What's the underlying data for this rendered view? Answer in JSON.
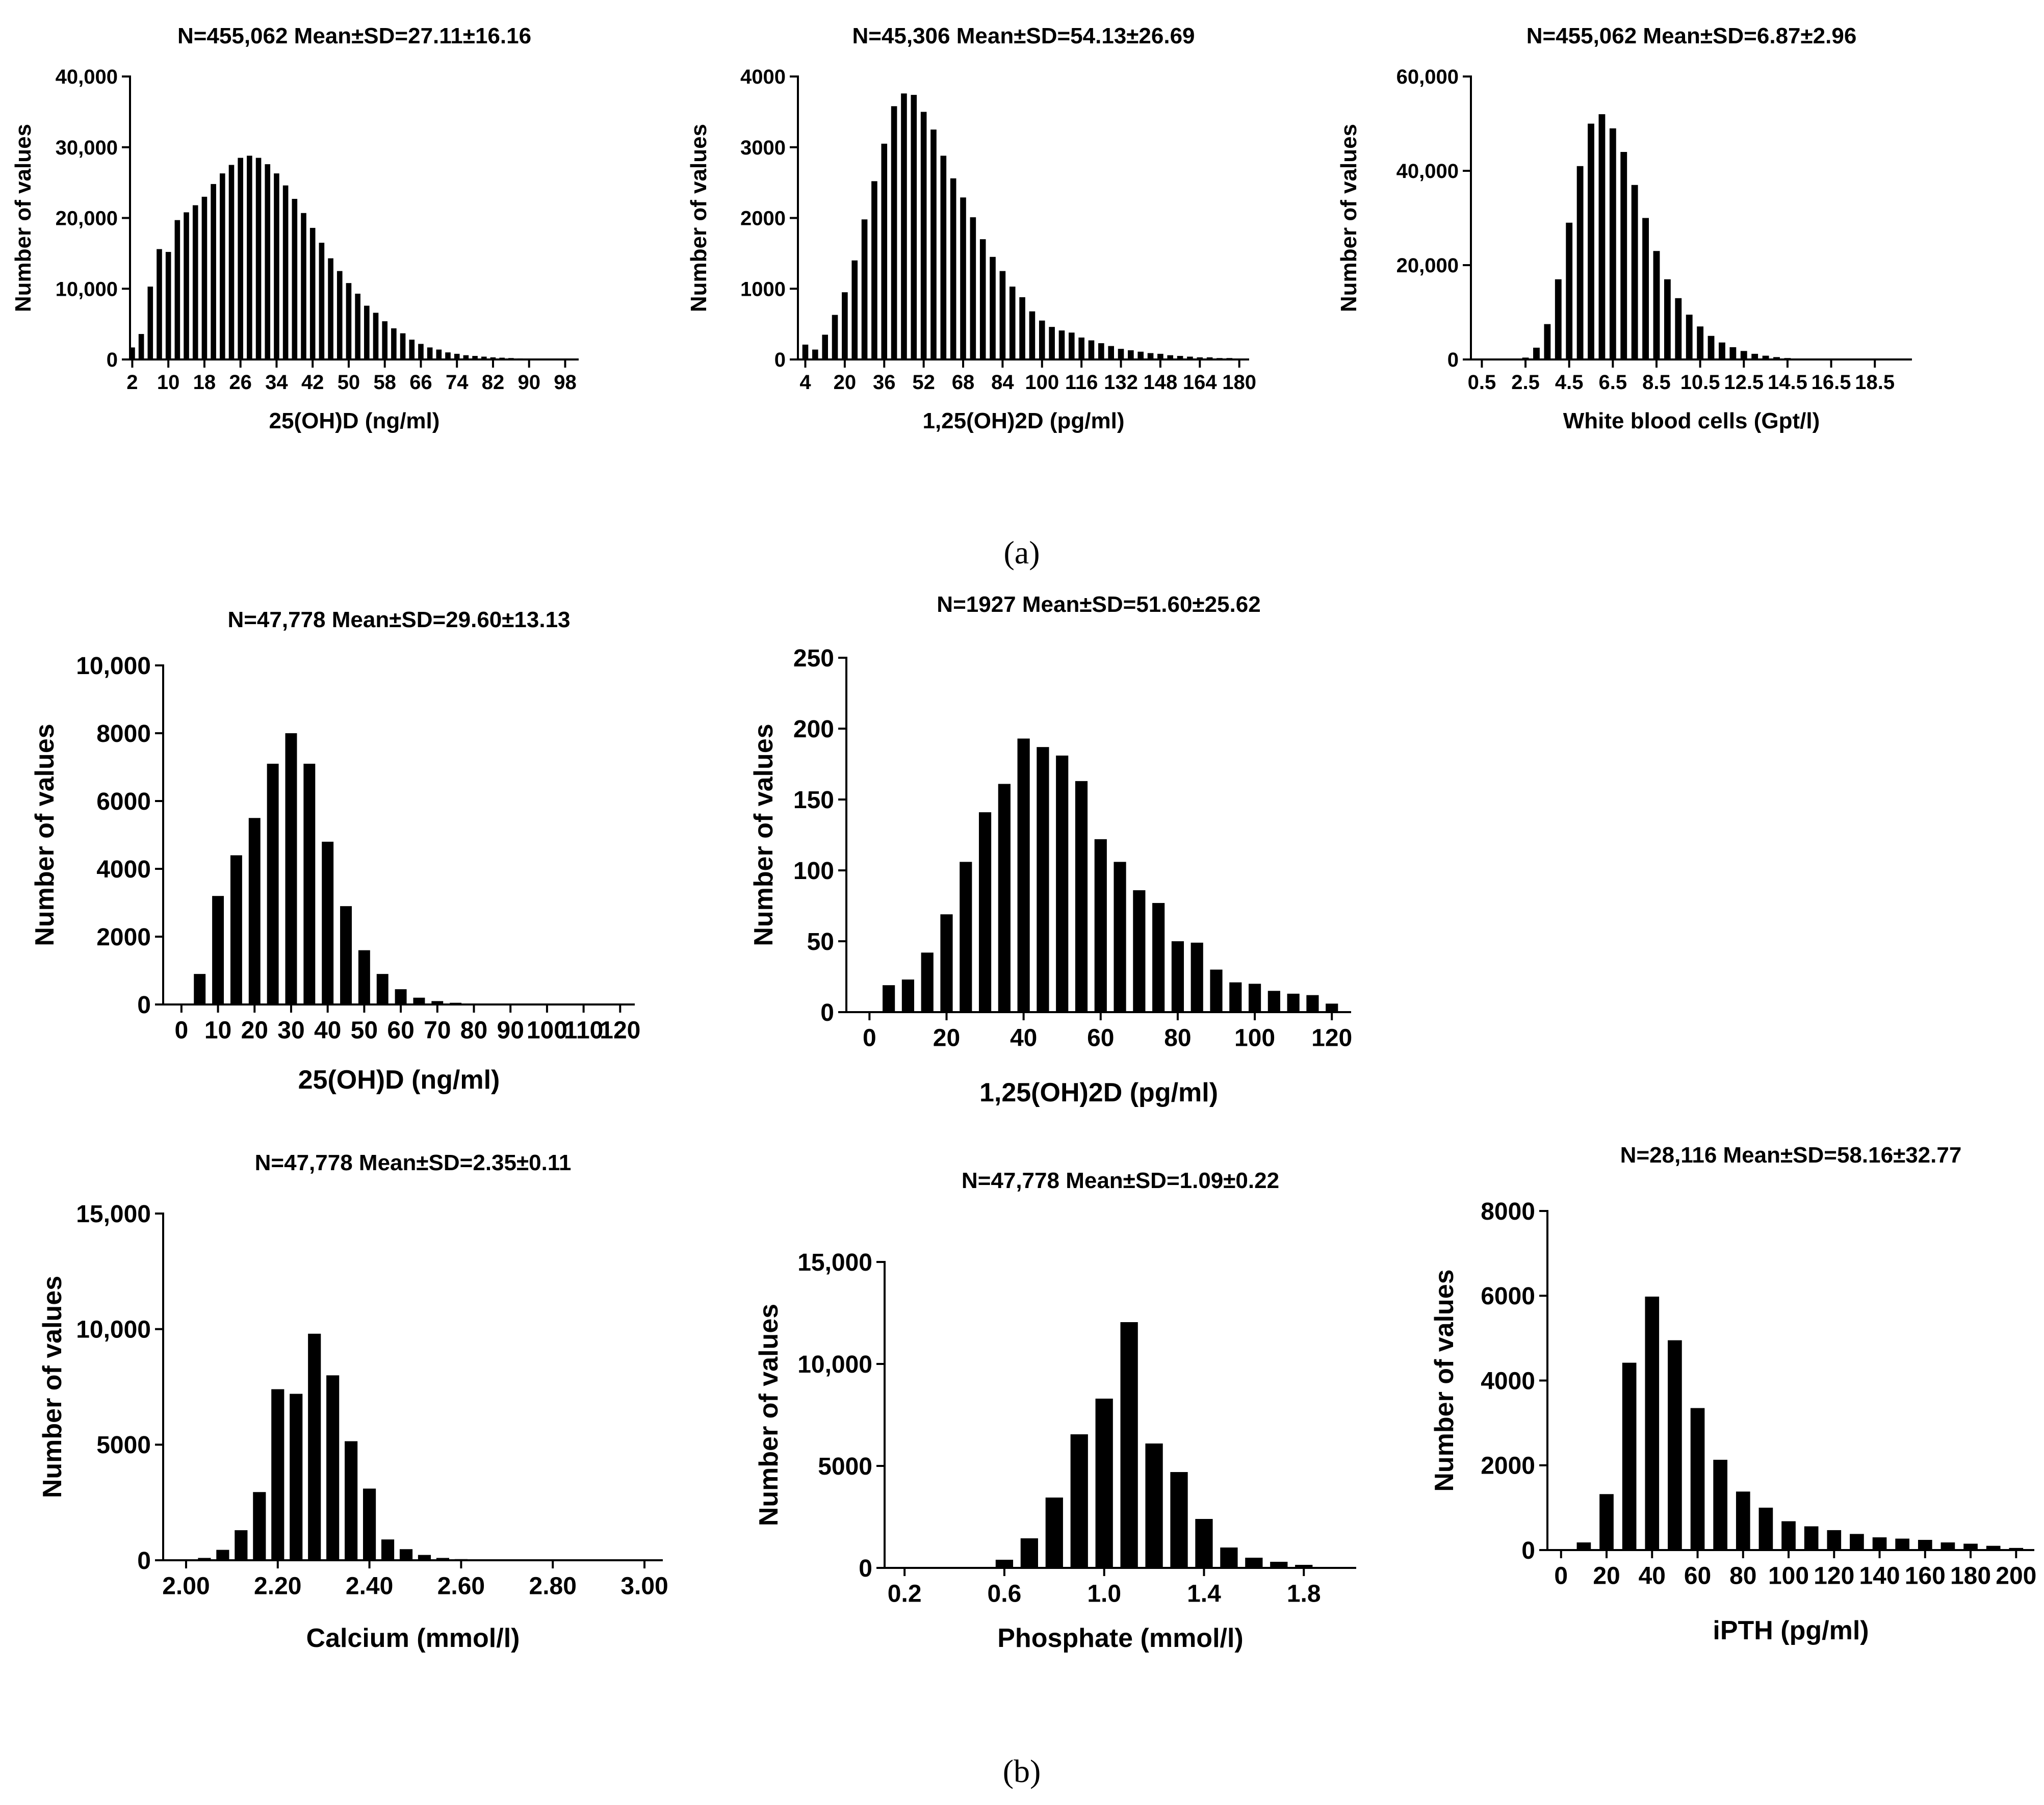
{
  "panel_labels": {
    "a": "(a)",
    "b": "(b)"
  },
  "chart_data": [
    {
      "type": "bar",
      "title": "N=455,062  Mean±SD=27.11±16.16",
      "xlabel": "25(OH)D (ng/ml)",
      "ylabel": "Number of values",
      "ylim": [
        0,
        40000
      ],
      "yticks": [
        0,
        10000,
        20000,
        30000,
        40000
      ],
      "ytick_labels": [
        "0",
        "10,000",
        "20,000",
        "30,000",
        "40,000"
      ],
      "xlim": [
        1.5,
        101
      ],
      "xticks": [
        2,
        10,
        18,
        26,
        34,
        42,
        50,
        58,
        66,
        74,
        82,
        90,
        98
      ],
      "xtick_labels": [
        "2",
        "10",
        "18",
        "26",
        "34",
        "42",
        "50",
        "58",
        "66",
        "74",
        "82",
        "90",
        "98"
      ],
      "bar_width": 1.2,
      "x": [
        2,
        4,
        6,
        8,
        10,
        12,
        14,
        16,
        18,
        20,
        22,
        24,
        26,
        28,
        30,
        32,
        34,
        36,
        38,
        40,
        42,
        44,
        46,
        48,
        50,
        52,
        54,
        56,
        58,
        60,
        62,
        64,
        66,
        68,
        70,
        72,
        74,
        76,
        78,
        80,
        82,
        84,
        86,
        88,
        90,
        92,
        94,
        96,
        98,
        100
      ],
      "values": [
        1700,
        3600,
        10300,
        15600,
        15200,
        19700,
        20800,
        21800,
        23000,
        24800,
        26300,
        27500,
        28500,
        28800,
        28500,
        27600,
        26300,
        24600,
        22700,
        20700,
        18600,
        16500,
        14300,
        12500,
        10800,
        9300,
        7600,
        6600,
        5400,
        4400,
        3700,
        2800,
        2200,
        1700,
        1400,
        1000,
        800,
        600,
        500,
        400,
        300,
        250,
        200,
        150,
        120,
        100,
        80,
        60,
        50,
        40
      ]
    },
    {
      "type": "bar",
      "title": "N=45,306  Mean±SD=54.13±26.69",
      "xlabel": "1,25(OH)2D (pg/ml)",
      "ylabel": "Number of values",
      "ylim": [
        0,
        4000
      ],
      "yticks": [
        0,
        1000,
        2000,
        3000,
        4000
      ],
      "ytick_labels": [
        "0",
        "1000",
        "2000",
        "3000",
        "4000"
      ],
      "xlim": [
        1,
        184
      ],
      "xticks": [
        4,
        20,
        36,
        52,
        68,
        84,
        100,
        116,
        132,
        148,
        164,
        180
      ],
      "xtick_labels": [
        "4",
        "20",
        "36",
        "52",
        "68",
        "84",
        "100",
        "116",
        "132",
        "148",
        "164",
        "180"
      ],
      "bar_width": 2.4,
      "x": [
        4,
        8,
        12,
        16,
        20,
        24,
        28,
        32,
        36,
        40,
        44,
        48,
        52,
        56,
        60,
        64,
        68,
        72,
        76,
        80,
        84,
        88,
        92,
        96,
        100,
        104,
        108,
        112,
        116,
        120,
        124,
        128,
        132,
        136,
        140,
        144,
        148,
        152,
        156,
        160,
        164,
        168,
        172,
        176,
        180
      ],
      "values": [
        210,
        140,
        350,
        630,
        950,
        1400,
        1980,
        2520,
        3050,
        3580,
        3760,
        3740,
        3500,
        3250,
        2880,
        2560,
        2290,
        2010,
        1700,
        1450,
        1250,
        1030,
        880,
        680,
        550,
        460,
        410,
        380,
        310,
        270,
        230,
        190,
        150,
        130,
        110,
        90,
        80,
        60,
        50,
        40,
        30,
        30,
        20,
        20,
        10
      ]
    },
    {
      "type": "bar",
      "title": "N=455,062  Mean±SD=6.87±2.96",
      "xlabel": "White blood cells (Gpt/l)",
      "ylabel": "Number of values",
      "ylim": [
        0,
        60000
      ],
      "yticks": [
        0,
        20000,
        40000,
        60000
      ],
      "ytick_labels": [
        "0",
        "20,000",
        "40,000",
        "60,000"
      ],
      "xlim": [
        0,
        20.2
      ],
      "xticks": [
        0.5,
        2.5,
        4.5,
        6.5,
        8.5,
        10.5,
        12.5,
        14.5,
        16.5,
        18.5
      ],
      "xtick_labels": [
        "0.5",
        "2.5",
        "4.5",
        "6.5",
        "8.5",
        "10.5",
        "12.5",
        "14.5",
        "16.5",
        "18.5"
      ],
      "bar_width": 0.3,
      "x": [
        0.5,
        1,
        1.5,
        2,
        2.5,
        3,
        3.5,
        4,
        4.5,
        5,
        5.5,
        6,
        6.5,
        7,
        7.5,
        8,
        8.5,
        9,
        9.5,
        10,
        10.5,
        11,
        11.5,
        12,
        12.5,
        13,
        13.5,
        14,
        14.5,
        15,
        15.5,
        16,
        16.5,
        17,
        17.5,
        18,
        18.5,
        19
      ],
      "values": [
        0,
        0,
        0,
        0,
        400,
        2500,
        7500,
        17000,
        29000,
        41000,
        50000,
        52000,
        49000,
        44000,
        37000,
        30000,
        23000,
        17000,
        13000,
        9500,
        7000,
        5000,
        3600,
        2600,
        1800,
        1200,
        800,
        500,
        300,
        200,
        150,
        100,
        80,
        60,
        40,
        30,
        20,
        10
      ]
    },
    {
      "type": "bar",
      "title": "N=47,778 Mean±SD=29.60±13.13",
      "xlabel": "25(OH)D (ng/ml)",
      "ylabel": "Number of values",
      "ylim": [
        0,
        10000
      ],
      "yticks": [
        0,
        2000,
        4000,
        6000,
        8000,
        10000
      ],
      "ytick_labels": [
        "0",
        "2000",
        "4000",
        "6000",
        "8000",
        "10,000"
      ],
      "xlim": [
        -5,
        124
      ],
      "xticks": [
        0,
        10,
        20,
        30,
        40,
        50,
        60,
        70,
        80,
        90,
        100,
        110,
        120
      ],
      "xtick_labels": [
        "0",
        "10",
        "20",
        "30",
        "40",
        "50",
        "60",
        "70",
        "80",
        "90",
        "100",
        "110",
        "120"
      ],
      "bar_width": 3.2,
      "x": [
        5,
        10,
        15,
        20,
        25,
        30,
        35,
        40,
        45,
        50,
        55,
        60,
        65,
        70,
        75,
        80,
        85,
        90,
        95,
        100,
        105,
        110,
        115,
        120
      ],
      "values": [
        900,
        3200,
        4400,
        5500,
        7100,
        8000,
        7100,
        4800,
        2900,
        1600,
        900,
        450,
        200,
        100,
        50,
        30,
        20,
        10,
        10,
        10,
        5,
        5,
        5,
        5
      ]
    },
    {
      "type": "bar",
      "title": "N=1927 Mean±SD=51.60±25.62",
      "xlabel": "1,25(OH)2D (pg/ml)",
      "ylabel": "Number of values",
      "ylim": [
        0,
        250
      ],
      "yticks": [
        0,
        50,
        100,
        150,
        200,
        250
      ],
      "ytick_labels": [
        "0",
        "50",
        "100",
        "150",
        "200",
        "250"
      ],
      "xlim": [
        -6,
        125
      ],
      "xticks": [
        0,
        20,
        40,
        60,
        80,
        100,
        120
      ],
      "xtick_labels": [
        "0",
        "20",
        "40",
        "60",
        "80",
        "100",
        "120"
      ],
      "bar_width": 3.2,
      "x": [
        5,
        10,
        15,
        20,
        25,
        30,
        35,
        40,
        45,
        50,
        55,
        60,
        65,
        70,
        75,
        80,
        85,
        90,
        95,
        100,
        105,
        110,
        115,
        120
      ],
      "values": [
        19,
        23,
        42,
        69,
        106,
        141,
        161,
        193,
        187,
        181,
        163,
        122,
        106,
        86,
        77,
        50,
        49,
        30,
        21,
        20,
        15,
        13,
        12,
        6
      ]
    },
    {
      "type": "bar",
      "title": "N=47,778 Mean±SD=2.35±0.11",
      "xlabel": "Calcium (mmol/l)",
      "ylabel": "Number of values",
      "ylim": [
        0,
        15000
      ],
      "yticks": [
        0,
        5000,
        10000,
        15000
      ],
      "ytick_labels": [
        "0",
        "5000",
        "10,000",
        "15,000"
      ],
      "xlim": [
        1.95,
        3.04
      ],
      "xticks": [
        2.0,
        2.2,
        2.4,
        2.6,
        2.8,
        3.0
      ],
      "xtick_labels": [
        "2.00",
        "2.20",
        "2.40",
        "2.60",
        "2.80",
        "3.00"
      ],
      "bar_width": 0.028,
      "x": [
        2.0,
        2.04,
        2.08,
        2.12,
        2.16,
        2.2,
        2.24,
        2.28,
        2.32,
        2.36,
        2.4,
        2.44,
        2.48,
        2.52,
        2.56,
        2.6,
        2.64,
        2.68,
        2.72,
        2.76,
        2.8,
        2.84,
        2.88,
        2.92,
        2.96,
        3.0
      ],
      "values": [
        40,
        100,
        450,
        1300,
        2950,
        7400,
        7200,
        9800,
        8000,
        5150,
        3100,
        900,
        480,
        230,
        100,
        50,
        30,
        20,
        10,
        10,
        10,
        10,
        10,
        10,
        10,
        10
      ]
    },
    {
      "type": "bar",
      "title": "N=47,778 Mean±SD=1.09±0.22",
      "xlabel": "Phosphate (mmol/l)",
      "ylabel": "Number of values",
      "ylim": [
        0,
        15000
      ],
      "yticks": [
        0,
        5000,
        10000,
        15000
      ],
      "ytick_labels": [
        "0",
        "5000",
        "10,000",
        "15,000"
      ],
      "xlim": [
        0.12,
        2.01
      ],
      "xticks": [
        0.2,
        0.6,
        1.0,
        1.4,
        1.8
      ],
      "xtick_labels": [
        "0.2",
        "0.6",
        "1.0",
        "1.4",
        "1.8"
      ],
      "bar_width": 0.07,
      "x": [
        0.2,
        0.3,
        0.4,
        0.5,
        0.6,
        0.7,
        0.8,
        0.9,
        1.0,
        1.1,
        1.2,
        1.3,
        1.4,
        1.5,
        1.6,
        1.7,
        1.8,
        1.9
      ],
      "values": [
        0,
        0,
        0,
        50,
        400,
        1450,
        3450,
        6550,
        8300,
        12050,
        6100,
        4700,
        2400,
        1000,
        500,
        300,
        150,
        50
      ]
    },
    {
      "type": "bar",
      "title": "N=28,116 Mean±SD=58.16±32.77",
      "xlabel": "iPTH (pg/ml)",
      "ylabel": "Number of values",
      "ylim": [
        0,
        8000
      ],
      "yticks": [
        0,
        2000,
        4000,
        6000,
        8000
      ],
      "ytick_labels": [
        "0",
        "2000",
        "4000",
        "6000",
        "8000"
      ],
      "xlim": [
        -6,
        208
      ],
      "xticks": [
        0,
        20,
        40,
        60,
        80,
        100,
        120,
        140,
        160,
        180,
        200
      ],
      "xtick_labels": [
        "0",
        "20",
        "40",
        "60",
        "80",
        "100",
        "120",
        "140",
        "160",
        "180",
        "200"
      ],
      "bar_width": 6.2,
      "x": [
        10,
        20,
        30,
        40,
        50,
        60,
        70,
        80,
        90,
        100,
        110,
        120,
        130,
        140,
        150,
        160,
        170,
        180,
        190,
        200
      ],
      "values": [
        180,
        1320,
        4420,
        5980,
        4950,
        3350,
        2130,
        1380,
        1000,
        680,
        560,
        470,
        380,
        300,
        270,
        240,
        180,
        150,
        100,
        50
      ]
    }
  ]
}
